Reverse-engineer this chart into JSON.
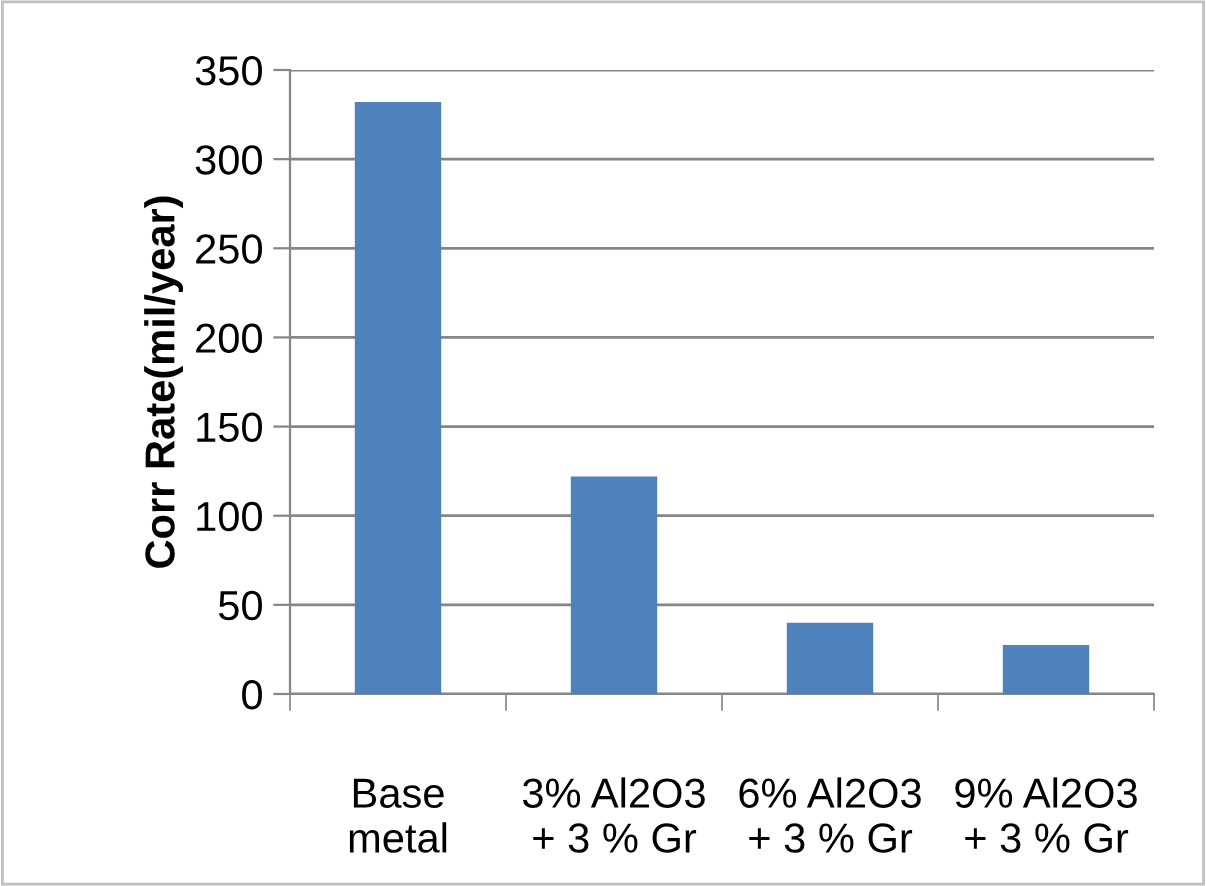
{
  "chart_data": {
    "type": "bar",
    "ylabel": "Corr Rate(mil/year)",
    "categories": [
      "Base\nmetal",
      "3% Al2O3\n+ 3 % Gr",
      "6% Al2O3\n+ 3 % Gr",
      "9% Al2O3\n+ 3 % Gr"
    ],
    "values": [
      332,
      122,
      40,
      27.5
    ],
    "color": "#4f81bd",
    "ylim": [
      0,
      350
    ],
    "yticks": [
      0,
      50,
      100,
      150,
      200,
      250,
      300,
      350
    ],
    "grid": "y",
    "legend": false
  }
}
